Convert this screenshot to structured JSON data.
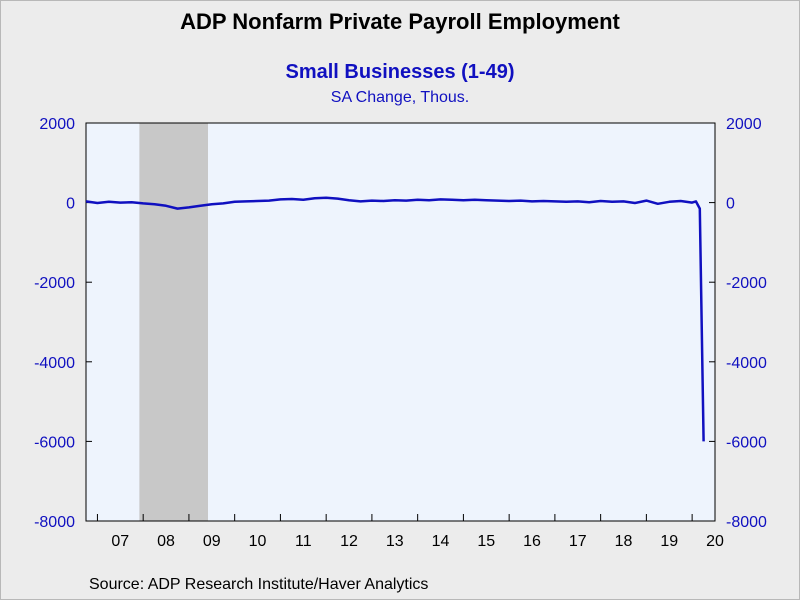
{
  "chart_data": {
    "type": "line",
    "title": "ADP Nonfarm Private Payroll Employment",
    "subtitle": "Small Businesses (1-49)",
    "units": "SA Change, Thous.",
    "source": "Source:  ADP Research Institute/Haver Analytics",
    "ylim": [
      -8000,
      2000
    ],
    "yticks": [
      2000,
      0,
      -2000,
      -4000,
      -6000,
      -8000
    ],
    "ytick_labels": [
      "2000",
      "0",
      "-2000",
      "-4000",
      "-6000",
      "-8000"
    ],
    "y_axis_both_sides": true,
    "xlim": [
      "2006-10",
      "2020-07"
    ],
    "xtick_labels": [
      "07",
      "08",
      "09",
      "10",
      "11",
      "12",
      "13",
      "14",
      "15",
      "16",
      "17",
      "18",
      "19",
      "20"
    ],
    "recession_shading": {
      "start": "2007-12",
      "end": "2009-06",
      "color": "#c8c8c8"
    },
    "grid": false,
    "colors": {
      "line": "#1010c0",
      "plot_background": "#eef4fd",
      "axis_text": "#1010c0"
    },
    "series": [
      {
        "x": [
          "2006-10",
          "2007-01",
          "2007-04",
          "2007-07",
          "2007-10",
          "2008-01",
          "2008-04",
          "2008-07",
          "2008-10",
          "2009-01",
          "2009-04",
          "2009-07",
          "2009-10",
          "2010-01",
          "2010-04",
          "2010-07",
          "2010-10",
          "2011-01",
          "2011-04",
          "2011-07",
          "2011-10",
          "2012-01",
          "2012-04",
          "2012-07",
          "2012-10",
          "2013-01",
          "2013-04",
          "2013-07",
          "2013-10",
          "2014-01",
          "2014-04",
          "2014-07",
          "2014-10",
          "2015-01",
          "2015-04",
          "2015-07",
          "2015-10",
          "2016-01",
          "2016-04",
          "2016-07",
          "2016-10",
          "2017-01",
          "2017-04",
          "2017-07",
          "2017-10",
          "2018-01",
          "2018-04",
          "2018-07",
          "2018-10",
          "2019-01",
          "2019-04",
          "2019-07",
          "2019-10",
          "2020-01",
          "2020-02",
          "2020-03",
          "2020-04"
        ],
        "values": [
          30,
          -10,
          20,
          0,
          10,
          -20,
          -40,
          -80,
          -150,
          -120,
          -80,
          -40,
          -20,
          20,
          30,
          40,
          50,
          80,
          90,
          70,
          110,
          120,
          100,
          60,
          30,
          50,
          40,
          60,
          50,
          70,
          60,
          80,
          70,
          60,
          70,
          60,
          50,
          40,
          50,
          30,
          40,
          30,
          20,
          30,
          10,
          40,
          20,
          30,
          -10,
          50,
          -30,
          20,
          40,
          0,
          30,
          -150,
          -6000
        ]
      }
    ]
  }
}
